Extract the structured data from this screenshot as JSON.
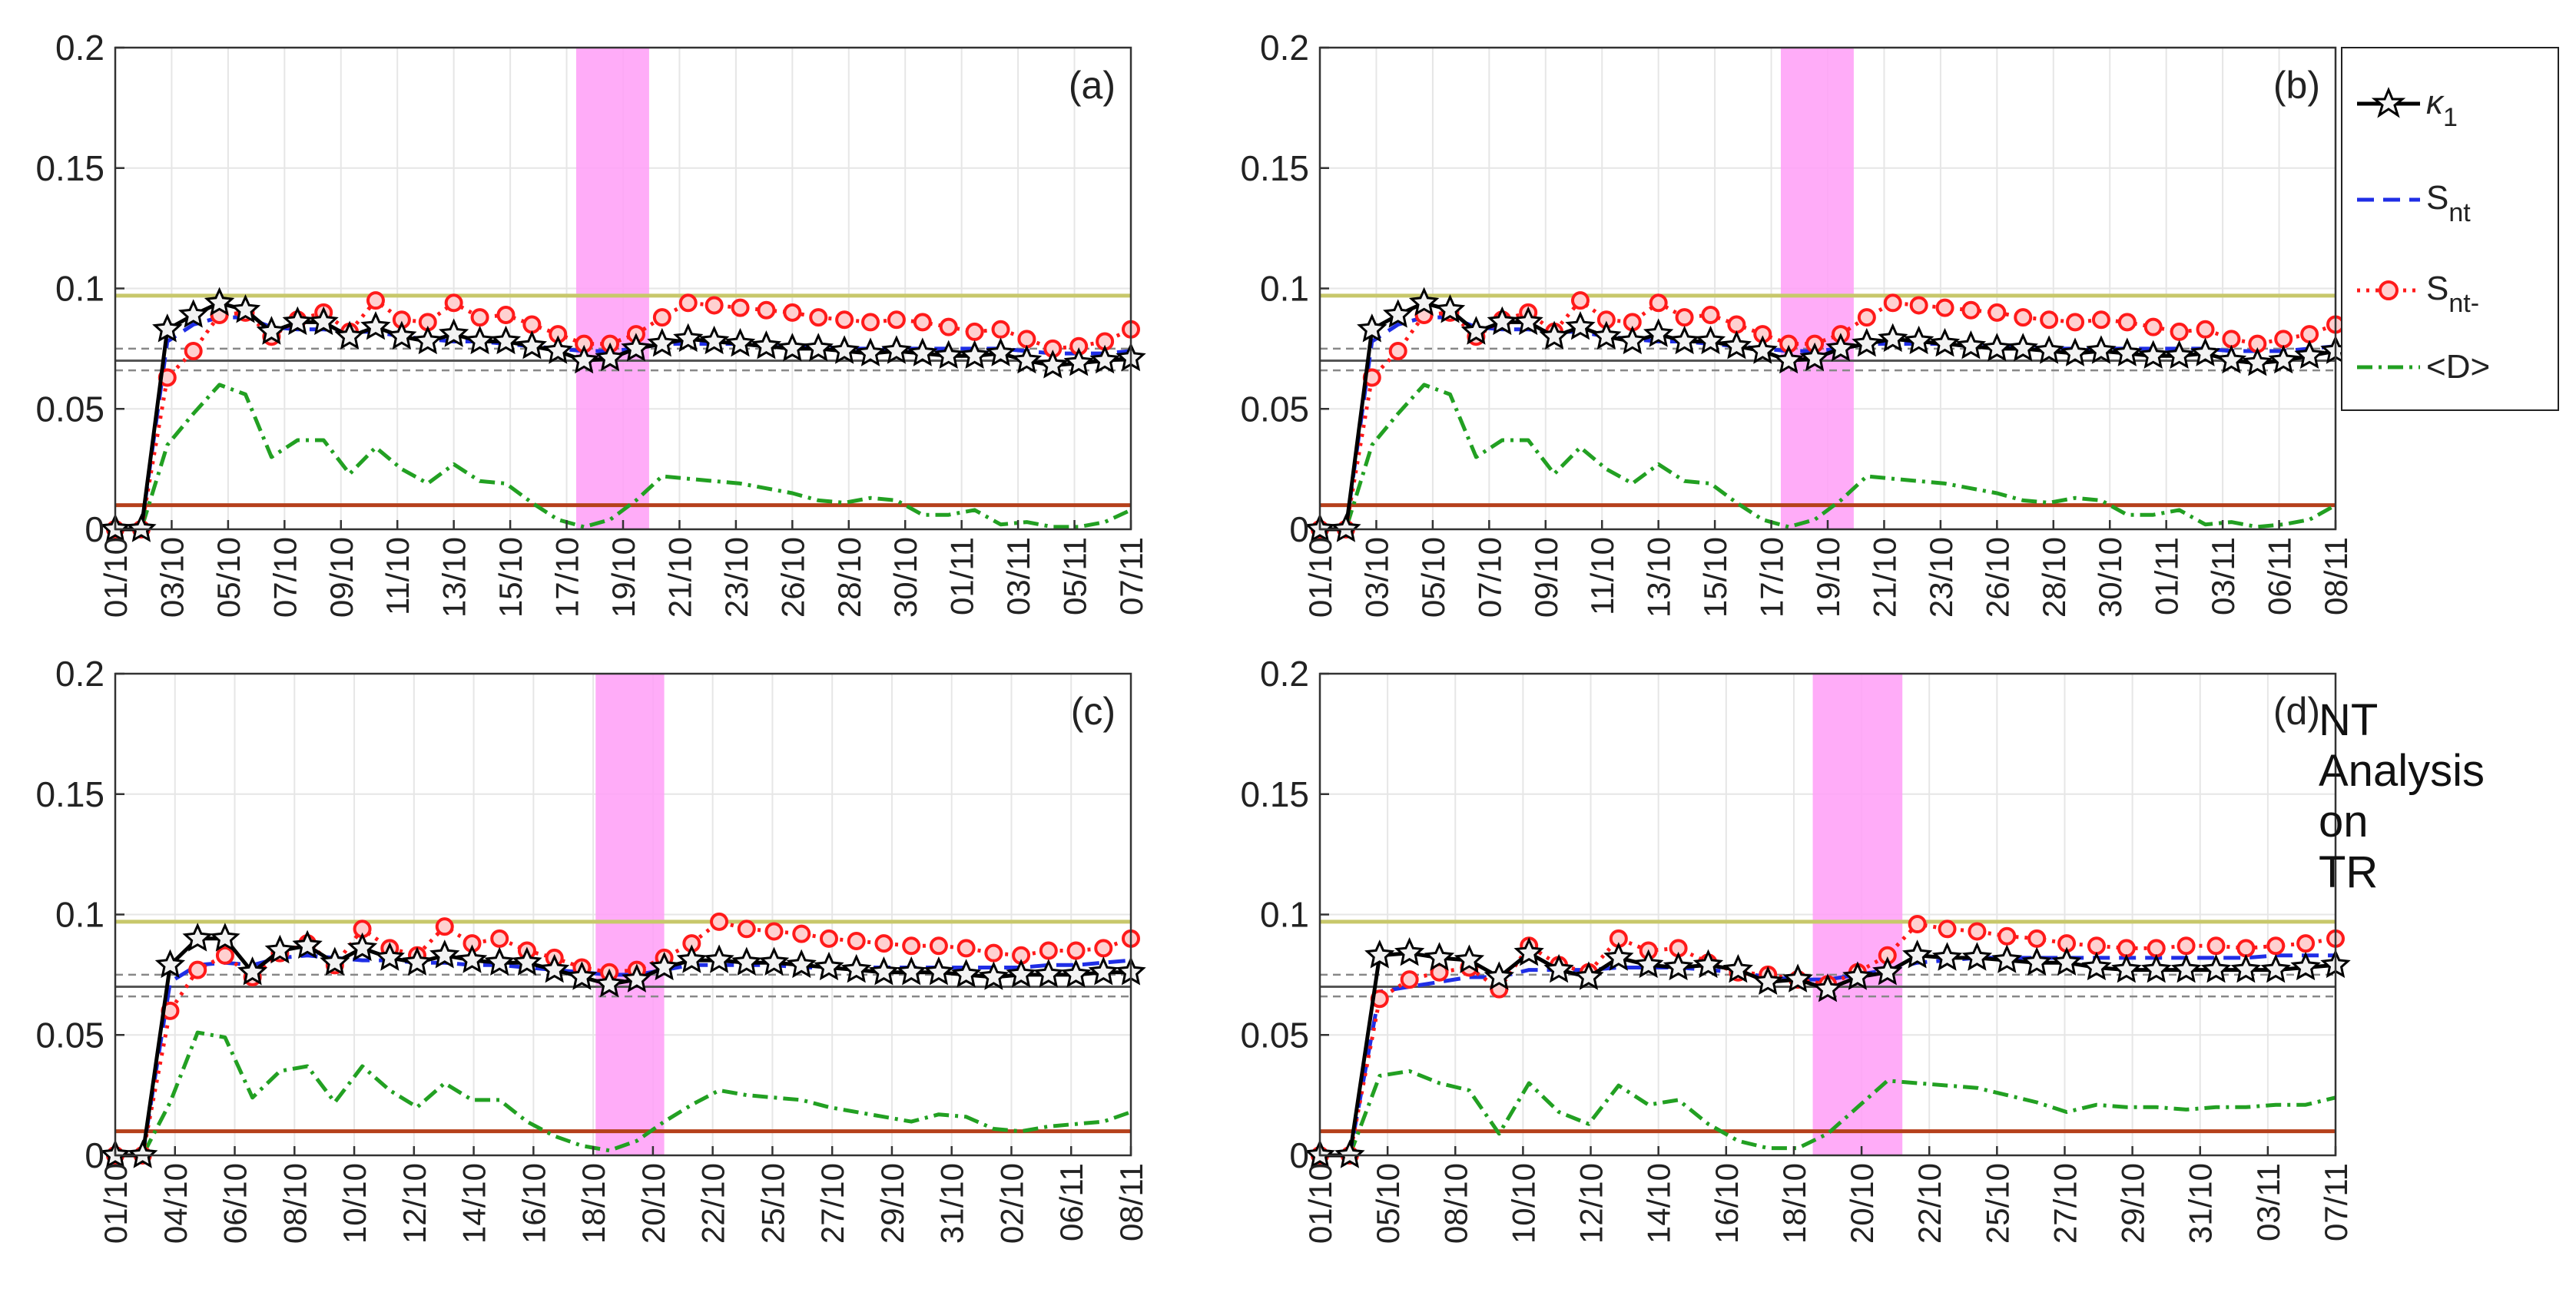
{
  "figure": {
    "side_note": [
      "NT",
      "Analysis",
      "on",
      "TR"
    ]
  },
  "legend": {
    "position": "top-right",
    "entries": [
      {
        "id": "k1",
        "label_main": "κ",
        "label_sub": "1",
        "color": "#000000",
        "style": "solid-star"
      },
      {
        "id": "snt",
        "label_main": "S",
        "label_sub": "nt",
        "color": "#1f2ee6",
        "style": "dashed"
      },
      {
        "id": "sntm",
        "label_main": "S",
        "label_sub": "nt-",
        "color": "#ff1a1a",
        "style": "dotted-circle"
      },
      {
        "id": "d",
        "label_main": "<D>",
        "label_sub": "",
        "color": "#22a022",
        "style": "dashdot"
      }
    ]
  },
  "colors": {
    "highlight": "#ff9ef7",
    "upper_ref": "#c8c86b",
    "lower_ref": "#b5401b",
    "ref_gray": "#555555",
    "grid": "#e6e6e6"
  },
  "chart_data": [
    {
      "panel": "(a)",
      "type": "line",
      "ylim": [
        0,
        0.2
      ],
      "yticks": [
        "0",
        "0.05",
        "0.1",
        "0.15",
        "0.2"
      ],
      "grid": true,
      "x_tick_labels": [
        "01/10",
        "03/10",
        "05/10",
        "07/10",
        "09/10",
        "11/10",
        "13/10",
        "15/10",
        "17/10",
        "19/10",
        "21/10",
        "23/10",
        "26/10",
        "28/10",
        "30/10",
        "01/11",
        "03/11",
        "05/11",
        "07/11"
      ],
      "highlight_x": [
        17.7,
        20.5
      ],
      "hlines": {
        "upper": 0.097,
        "lower": 0.01,
        "ref_solid": 0.07,
        "ref_dashed": [
          0.075,
          0.066
        ]
      },
      "series": [
        {
          "id": "k1",
          "values": [
            0,
            0,
            0.083,
            0.089,
            0.094,
            0.091,
            0.082,
            0.086,
            0.086,
            0.08,
            0.084,
            0.08,
            0.078,
            0.081,
            0.078,
            0.078,
            0.076,
            0.074,
            0.07,
            0.071,
            0.075,
            0.077,
            0.079,
            0.078,
            0.077,
            0.076,
            0.075,
            0.075,
            0.074,
            0.073,
            0.074,
            0.073,
            0.072,
            0.072,
            0.073,
            0.07,
            0.068,
            0.069,
            0.07,
            0.071
          ]
        },
        {
          "id": "snt",
          "values": [
            0,
            0,
            0.078,
            0.085,
            0.088,
            0.088,
            0.084,
            0.083,
            0.083,
            0.082,
            0.082,
            0.08,
            0.079,
            0.078,
            0.078,
            0.077,
            0.076,
            0.075,
            0.074,
            0.074,
            0.075,
            0.077,
            0.077,
            0.077,
            0.077,
            0.076,
            0.076,
            0.076,
            0.075,
            0.075,
            0.075,
            0.075,
            0.075,
            0.075,
            0.075,
            0.074,
            0.073,
            0.073,
            0.073,
            0.074
          ]
        },
        {
          "id": "sntm",
          "values": [
            0,
            0,
            0.063,
            0.074,
            0.089,
            0.09,
            0.08,
            0.087,
            0.09,
            0.082,
            0.095,
            0.087,
            0.086,
            0.094,
            0.088,
            0.089,
            0.085,
            0.081,
            0.077,
            0.077,
            0.081,
            0.088,
            0.094,
            0.093,
            0.092,
            0.091,
            0.09,
            0.088,
            0.087,
            0.086,
            0.087,
            0.086,
            0.084,
            0.082,
            0.083,
            0.079,
            0.075,
            0.076,
            0.078,
            0.083
          ]
        },
        {
          "id": "d",
          "values": [
            0,
            0,
            0.035,
            0.048,
            0.06,
            0.056,
            0.03,
            0.037,
            0.037,
            0.023,
            0.034,
            0.025,
            0.019,
            0.027,
            0.02,
            0.019,
            0.011,
            0.004,
            0.001,
            0.004,
            0.012,
            0.022,
            0.021,
            0.02,
            0.019,
            0.017,
            0.015,
            0.012,
            0.011,
            0.013,
            0.012,
            0.006,
            0.006,
            0.008,
            0.002,
            0.003,
            0.001,
            0.001,
            0.003,
            0.008
          ]
        }
      ]
    },
    {
      "panel": "(b)",
      "type": "line",
      "ylim": [
        0,
        0.2
      ],
      "yticks": [
        "0",
        "0.05",
        "0.1",
        "0.15",
        "0.2"
      ],
      "grid": true,
      "x_tick_labels": [
        "01/10",
        "03/10",
        "05/10",
        "07/10",
        "09/10",
        "11/10",
        "13/10",
        "15/10",
        "17/10",
        "19/10",
        "21/10",
        "23/10",
        "26/10",
        "28/10",
        "30/10",
        "01/11",
        "03/11",
        "06/11",
        "08/11"
      ],
      "highlight_x": [
        17.7,
        20.5
      ],
      "hlines": {
        "upper": 0.097,
        "lower": 0.01,
        "ref_solid": 0.07,
        "ref_dashed": [
          0.075,
          0.066
        ]
      },
      "series": [
        {
          "id": "k1",
          "values": [
            0,
            0,
            0.083,
            0.089,
            0.094,
            0.091,
            0.082,
            0.086,
            0.086,
            0.08,
            0.084,
            0.08,
            0.078,
            0.081,
            0.078,
            0.078,
            0.076,
            0.074,
            0.07,
            0.071,
            0.075,
            0.077,
            0.079,
            0.078,
            0.077,
            0.076,
            0.075,
            0.075,
            0.074,
            0.073,
            0.074,
            0.073,
            0.072,
            0.072,
            0.073,
            0.07,
            0.069,
            0.07,
            0.072,
            0.074
          ]
        },
        {
          "id": "snt",
          "values": [
            0,
            0,
            0.078,
            0.085,
            0.088,
            0.088,
            0.084,
            0.083,
            0.083,
            0.082,
            0.082,
            0.08,
            0.079,
            0.078,
            0.078,
            0.077,
            0.076,
            0.075,
            0.074,
            0.074,
            0.075,
            0.077,
            0.077,
            0.077,
            0.077,
            0.076,
            0.076,
            0.076,
            0.075,
            0.075,
            0.075,
            0.075,
            0.075,
            0.075,
            0.075,
            0.074,
            0.074,
            0.074,
            0.075,
            0.076
          ]
        },
        {
          "id": "sntm",
          "values": [
            0,
            0,
            0.063,
            0.074,
            0.089,
            0.09,
            0.08,
            0.087,
            0.09,
            0.082,
            0.095,
            0.087,
            0.086,
            0.094,
            0.088,
            0.089,
            0.085,
            0.081,
            0.077,
            0.077,
            0.081,
            0.088,
            0.094,
            0.093,
            0.092,
            0.091,
            0.09,
            0.088,
            0.087,
            0.086,
            0.087,
            0.086,
            0.084,
            0.082,
            0.083,
            0.079,
            0.077,
            0.079,
            0.081,
            0.085
          ]
        },
        {
          "id": "d",
          "values": [
            0,
            0,
            0.035,
            0.048,
            0.06,
            0.056,
            0.03,
            0.037,
            0.037,
            0.023,
            0.034,
            0.025,
            0.019,
            0.027,
            0.02,
            0.019,
            0.011,
            0.004,
            0.001,
            0.004,
            0.012,
            0.022,
            0.021,
            0.02,
            0.019,
            0.017,
            0.015,
            0.012,
            0.011,
            0.013,
            0.012,
            0.006,
            0.006,
            0.008,
            0.002,
            0.003,
            0.001,
            0.002,
            0.004,
            0.01
          ]
        }
      ]
    },
    {
      "panel": "(c)",
      "type": "line",
      "ylim": [
        0,
        0.2
      ],
      "yticks": [
        "0",
        "0.05",
        "0.1",
        "0.15",
        "0.2"
      ],
      "grid": true,
      "x_tick_labels": [
        "01/10",
        "04/10",
        "06/10",
        "08/10",
        "10/10",
        "12/10",
        "14/10",
        "16/10",
        "18/10",
        "20/10",
        "22/10",
        "25/10",
        "27/10",
        "29/10",
        "31/10",
        "02/10",
        "06/11",
        "08/11"
      ],
      "highlight_x": [
        17.5,
        20.0
      ],
      "hlines": {
        "upper": 0.097,
        "lower": 0.01,
        "ref_solid": 0.07,
        "ref_dashed": [
          0.075,
          0.066
        ]
      },
      "series": [
        {
          "id": "k1",
          "values": [
            0,
            0,
            0.079,
            0.09,
            0.09,
            0.076,
            0.085,
            0.087,
            0.08,
            0.086,
            0.082,
            0.08,
            0.083,
            0.081,
            0.08,
            0.08,
            0.077,
            0.074,
            0.071,
            0.073,
            0.078,
            0.081,
            0.081,
            0.08,
            0.08,
            0.079,
            0.078,
            0.077,
            0.076,
            0.076,
            0.076,
            0.075,
            0.074,
            0.075,
            0.075,
            0.075,
            0.076,
            0.076
          ]
        },
        {
          "id": "snt",
          "values": [
            0,
            0,
            0.072,
            0.079,
            0.08,
            0.079,
            0.082,
            0.083,
            0.082,
            0.081,
            0.081,
            0.08,
            0.08,
            0.079,
            0.079,
            0.078,
            0.077,
            0.076,
            0.075,
            0.075,
            0.077,
            0.079,
            0.079,
            0.079,
            0.079,
            0.078,
            0.078,
            0.078,
            0.078,
            0.078,
            0.078,
            0.078,
            0.078,
            0.078,
            0.079,
            0.079,
            0.08,
            0.081
          ]
        },
        {
          "id": "sntm",
          "values": [
            0,
            0,
            0.06,
            0.077,
            0.083,
            0.074,
            0.084,
            0.088,
            0.079,
            0.094,
            0.086,
            0.083,
            0.095,
            0.088,
            0.09,
            0.085,
            0.082,
            0.078,
            0.076,
            0.077,
            0.082,
            0.088,
            0.097,
            0.094,
            0.093,
            0.092,
            0.09,
            0.089,
            0.088,
            0.087,
            0.087,
            0.086,
            0.084,
            0.083,
            0.085,
            0.085,
            0.086,
            0.09
          ]
        },
        {
          "id": "d",
          "values": [
            0,
            0,
            0.022,
            0.051,
            0.049,
            0.024,
            0.035,
            0.037,
            0.022,
            0.037,
            0.027,
            0.02,
            0.03,
            0.023,
            0.023,
            0.014,
            0.008,
            0.004,
            0.002,
            0.006,
            0.014,
            0.021,
            0.027,
            0.025,
            0.024,
            0.023,
            0.02,
            0.018,
            0.016,
            0.014,
            0.017,
            0.016,
            0.011,
            0.01,
            0.012,
            0.013,
            0.014,
            0.018
          ]
        }
      ]
    },
    {
      "panel": "(d)",
      "type": "line",
      "ylim": [
        0,
        0.2
      ],
      "yticks": [
        "0",
        "0.05",
        "0.1",
        "0.15",
        "0.2"
      ],
      "grid": true,
      "x_tick_labels": [
        "01/10",
        "05/10",
        "08/10",
        "10/10",
        "12/10",
        "14/10",
        "16/10",
        "18/10",
        "20/10",
        "22/10",
        "25/10",
        "27/10",
        "29/10",
        "31/10",
        "03/11",
        "07/11"
      ],
      "highlight_x": [
        16.5,
        19.5
      ],
      "hlines": {
        "upper": 0.097,
        "lower": 0.01,
        "ref_solid": 0.07,
        "ref_dashed": [
          0.075,
          0.066
        ]
      },
      "series": [
        {
          "id": "k1",
          "values": [
            0,
            0,
            0.083,
            0.084,
            0.082,
            0.081,
            0.074,
            0.084,
            0.077,
            0.074,
            0.082,
            0.079,
            0.078,
            0.079,
            0.077,
            0.072,
            0.073,
            0.069,
            0.074,
            0.076,
            0.083,
            0.082,
            0.082,
            0.081,
            0.08,
            0.08,
            0.078,
            0.077,
            0.077,
            0.077,
            0.077,
            0.077,
            0.077,
            0.078,
            0.079
          ]
        },
        {
          "id": "snt",
          "values": [
            0,
            0,
            0.068,
            0.07,
            0.072,
            0.074,
            0.074,
            0.077,
            0.077,
            0.077,
            0.078,
            0.078,
            0.078,
            0.077,
            0.076,
            0.074,
            0.073,
            0.073,
            0.075,
            0.077,
            0.08,
            0.081,
            0.082,
            0.082,
            0.082,
            0.082,
            0.082,
            0.082,
            0.082,
            0.082,
            0.082,
            0.082,
            0.083,
            0.083,
            0.083
          ]
        },
        {
          "id": "sntm",
          "values": [
            0,
            0,
            0.065,
            0.073,
            0.076,
            0.078,
            0.069,
            0.087,
            0.079,
            0.076,
            0.09,
            0.085,
            0.086,
            0.08,
            0.076,
            0.075,
            0.073,
            0.071,
            0.076,
            0.083,
            0.096,
            0.094,
            0.093,
            0.091,
            0.09,
            0.088,
            0.087,
            0.086,
            0.086,
            0.087,
            0.087,
            0.086,
            0.087,
            0.088,
            0.09
          ]
        },
        {
          "id": "d",
          "values": [
            0,
            0,
            0.033,
            0.035,
            0.03,
            0.027,
            0.009,
            0.03,
            0.018,
            0.013,
            0.029,
            0.021,
            0.023,
            0.013,
            0.006,
            0.003,
            0.003,
            0.009,
            0.02,
            0.031,
            0.03,
            0.029,
            0.028,
            0.025,
            0.022,
            0.018,
            0.021,
            0.02,
            0.02,
            0.019,
            0.02,
            0.02,
            0.021,
            0.021,
            0.024
          ]
        }
      ]
    }
  ]
}
